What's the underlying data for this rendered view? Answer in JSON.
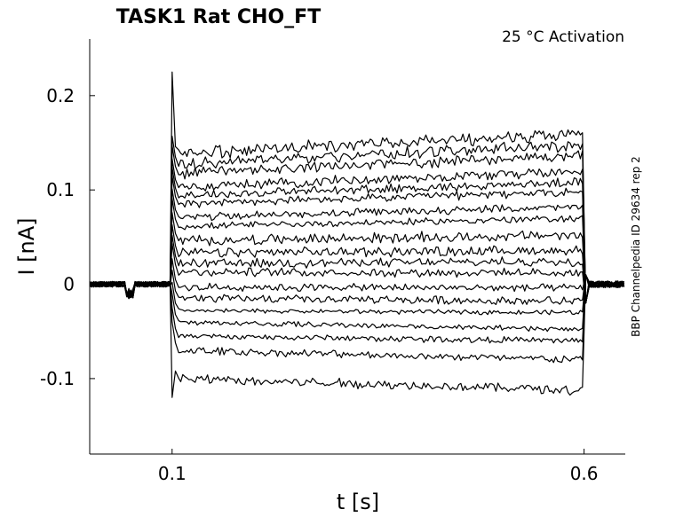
{
  "chart_data": {
    "type": "line",
    "title": "TASK1  Rat  CHO_FT",
    "annotation": "25 °C  Activation",
    "side_label": "BBP Channelpedia ID 29634 rep 2",
    "xlabel": "t [s]",
    "ylabel": "I [nA]",
    "xlim": [
      0.0,
      0.65
    ],
    "ylim": [
      -0.18,
      0.26
    ],
    "x_ticks": [
      {
        "value": 0.1,
        "label": "0.1"
      },
      {
        "value": 0.6,
        "label": "0.6"
      }
    ],
    "y_ticks": [
      {
        "value": 0.2,
        "label": "0.2"
      },
      {
        "value": 0.1,
        "label": "0.1"
      },
      {
        "value": 0.0,
        "label": "0"
      },
      {
        "value": -0.1,
        "label": "-0.1"
      }
    ],
    "grid": false,
    "pulse": {
      "start": 0.1,
      "end": 0.6
    },
    "series": [
      {
        "start": 0.138,
        "end": 0.16,
        "peak": 0.225
      },
      {
        "start": 0.127,
        "end": 0.148
      },
      {
        "start": 0.117,
        "end": 0.137
      },
      {
        "start": 0.103,
        "end": 0.12
      },
      {
        "start": 0.094,
        "end": 0.108
      },
      {
        "start": 0.085,
        "end": 0.098
      },
      {
        "start": 0.071,
        "end": 0.082
      },
      {
        "start": 0.061,
        "end": 0.07
      },
      {
        "start": 0.046,
        "end": 0.052
      },
      {
        "start": 0.033,
        "end": 0.036
      },
      {
        "start": 0.022,
        "end": 0.024
      },
      {
        "start": 0.013,
        "end": 0.012
      },
      {
        "start": -0.003,
        "end": -0.004
      },
      {
        "start": -0.015,
        "end": -0.018
      },
      {
        "start": -0.028,
        "end": -0.03
      },
      {
        "start": -0.04,
        "end": -0.048
      },
      {
        "start": -0.055,
        "end": -0.06
      },
      {
        "start": -0.07,
        "end": -0.08
      },
      {
        "start": -0.1,
        "end": -0.112,
        "peak": -0.12
      }
    ]
  }
}
